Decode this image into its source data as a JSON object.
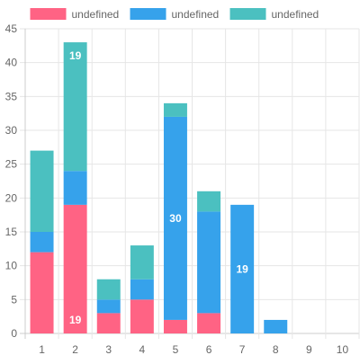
{
  "chart_data": {
    "type": "bar",
    "stacked": true,
    "title": "",
    "xlabel": "",
    "ylabel": "",
    "categories": [
      "1",
      "2",
      "3",
      "4",
      "5",
      "6",
      "7",
      "8",
      "9",
      "10"
    ],
    "ylim": [
      0,
      45
    ],
    "yticks": [
      0,
      5,
      10,
      15,
      20,
      25,
      30,
      35,
      40,
      45
    ],
    "grid": true,
    "legend_position": "top-center",
    "series": [
      {
        "name": "undefined",
        "color": "#ff6384",
        "values": [
          12,
          19,
          3,
          5,
          2,
          3,
          0,
          0,
          0,
          0
        ]
      },
      {
        "name": "undefined",
        "color": "#36a2eb",
        "values": [
          3,
          5,
          2,
          3,
          30,
          15,
          19,
          2,
          0,
          0
        ]
      },
      {
        "name": "undefined",
        "color": "#4bc0c0",
        "values": [
          12,
          19,
          3,
          5,
          2,
          3,
          0,
          0,
          0,
          0
        ]
      }
    ],
    "data_labels": [
      {
        "series": 2,
        "category": 1,
        "text": "19"
      },
      {
        "series": 0,
        "category": 1,
        "text": "19"
      },
      {
        "series": 1,
        "category": 4,
        "text": "30"
      },
      {
        "series": 1,
        "category": 6,
        "text": "19"
      }
    ]
  }
}
